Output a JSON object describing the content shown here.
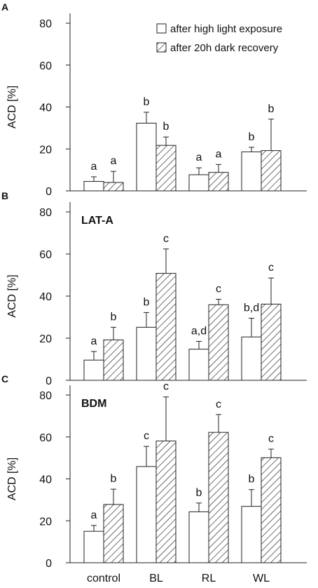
{
  "legend": {
    "high_light": "after high light exposure",
    "dark_recovery": "after 20h dark recovery"
  },
  "chart_data": [
    {
      "type": "bar",
      "panel_label": "A",
      "title": "",
      "categories": [
        "control",
        "BL",
        "RL",
        "WL"
      ],
      "xlabel": "",
      "ylabel": "ACD [%]",
      "ylim": [
        0,
        80
      ],
      "yticks": [
        0,
        20,
        40,
        60,
        80
      ],
      "series": [
        {
          "name": "after high light exposure",
          "values": [
            4.5,
            32.3,
            7.7,
            18.6
          ],
          "errors": [
            2.2,
            5.2,
            3.3,
            2.2
          ],
          "labels": [
            "a",
            "b",
            "a",
            "b"
          ]
        },
        {
          "name": "after 20h dark recovery",
          "values": [
            4.0,
            21.7,
            8.8,
            19.2
          ],
          "errors": [
            5.3,
            4.0,
            3.8,
            15.0
          ],
          "labels": [
            "a",
            "b",
            "a",
            "b"
          ]
        }
      ]
    },
    {
      "type": "bar",
      "panel_label": "B",
      "title": "LAT-A",
      "categories": [
        "control",
        "BL",
        "RL",
        "WL"
      ],
      "xlabel": "",
      "ylabel": "ACD [%]",
      "ylim": [
        0,
        80
      ],
      "yticks": [
        0,
        20,
        40,
        60,
        80
      ],
      "series": [
        {
          "name": "after high light exposure",
          "values": [
            9.6,
            25.2,
            14.8,
            20.6
          ],
          "errors": [
            4.1,
            7.0,
            3.7,
            8.9
          ],
          "labels": [
            "a",
            "b",
            "a,d",
            "b,d"
          ]
        },
        {
          "name": "after 20h dark recovery",
          "values": [
            19.2,
            50.8,
            35.9,
            36.2
          ],
          "errors": [
            6.0,
            11.6,
            2.6,
            12.4
          ],
          "labels": [
            "b",
            "c",
            "c",
            "c"
          ]
        }
      ]
    },
    {
      "type": "bar",
      "panel_label": "C",
      "title": "BDM",
      "categories": [
        "control",
        "BL",
        "RL",
        "WL"
      ],
      "xlabel": "",
      "ylabel": "ACD [%]",
      "ylim": [
        0,
        80
      ],
      "yticks": [
        0,
        20,
        40,
        60,
        80
      ],
      "series": [
        {
          "name": "after high light exposure",
          "values": [
            15.0,
            45.9,
            24.3,
            26.9
          ],
          "errors": [
            2.8,
            9.6,
            4.2,
            8.0
          ],
          "labels": [
            "a",
            "c",
            "b",
            "b"
          ]
        },
        {
          "name": "after 20h dark recovery",
          "values": [
            27.8,
            58.1,
            62.2,
            50.1
          ],
          "errors": [
            7.3,
            21.0,
            8.5,
            4.1
          ],
          "labels": [
            "b",
            "c",
            "c",
            "c"
          ]
        }
      ]
    }
  ]
}
